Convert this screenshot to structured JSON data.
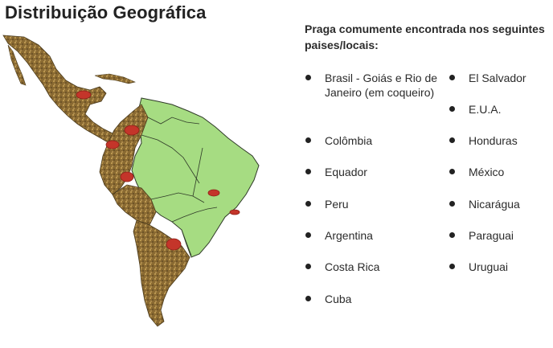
{
  "title": "Distribuição Geográfica",
  "heading": "Praga comumente encontrada nos seguintes paises/locais:",
  "colors": {
    "infested_region": "#8a6a32",
    "other_region": "#a6dc82",
    "border": "#2f3a28",
    "occurrence_marker": "#c4352a"
  },
  "countries_left": [
    "Brasil - Goiás e Rio de Janeiro (em coqueiro)",
    "Colômbia",
    "Equador",
    "Peru",
    "Argentina",
    "Costa Rica",
    "Cuba"
  ],
  "countries_right": [
    "El Salvador",
    "E.U.A.",
    "Honduras",
    "México",
    "Nicarágua",
    "Paraguai",
    "Uruguai"
  ]
}
